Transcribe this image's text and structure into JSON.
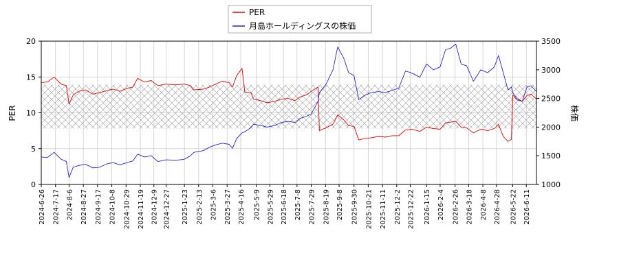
{
  "chart_data": {
    "type": "line",
    "legend": {
      "placement": "top-center",
      "entries": [
        {
          "label": "PER",
          "color": "#dd0000"
        },
        {
          "label": "月島ホールディングスの株価",
          "color": "#2222cc"
        }
      ]
    },
    "y_left": {
      "label": "PER",
      "lim": [
        0,
        20
      ],
      "ticks": [
        0,
        5,
        10,
        15,
        20
      ]
    },
    "y_right": {
      "label": "株価",
      "lim": [
        1000,
        3500
      ],
      "ticks": [
        1000,
        1500,
        2000,
        2500,
        3000,
        3500
      ]
    },
    "x": {
      "lim": [
        "2024-06-26",
        "2026-06-26"
      ],
      "tick_labels": [
        "2024-6-26",
        "2024-7-17",
        "2024-8-6",
        "2024-8-27",
        "2024-9-17",
        "2024-10-8",
        "2024-10-29",
        "2024-11-19",
        "2024-12-9",
        "2024-12-27",
        "2025-1-23",
        "2025-2-13",
        "2025-3-6",
        "2025-3-27",
        "2025-4-16",
        "2025-5-9",
        "2025-5-29",
        "2025-6-18",
        "2025-7-8",
        "2025-7-29",
        "2025-8-19",
        "2025-9-8",
        "2025-9-30",
        "2025-10-21",
        "2025-11-11",
        "2025-12-2",
        "2025-12-22",
        "2026-1-15",
        "2026-2-4",
        "2026-2-26",
        "2026-3-18",
        "2026-4-8",
        "2026-4-28",
        "2026-5-22",
        "2026-6-11"
      ]
    },
    "grid": true,
    "band": {
      "axis": "left",
      "range": [
        7.8,
        13.9
      ],
      "pattern": "crosshatch"
    },
    "series": [
      {
        "name": "PER",
        "axis": "left",
        "color": "#dd0000",
        "points": [
          [
            "2024-06-26",
            14.2
          ],
          [
            "2024-07-05",
            14.3
          ],
          [
            "2024-07-15",
            15.0
          ],
          [
            "2024-07-25",
            14.0
          ],
          [
            "2024-08-02",
            13.8
          ],
          [
            "2024-08-06",
            11.2
          ],
          [
            "2024-08-12",
            12.5
          ],
          [
            "2024-08-20",
            13.0
          ],
          [
            "2024-08-30",
            13.2
          ],
          [
            "2024-09-10",
            12.6
          ],
          [
            "2024-09-20",
            12.8
          ],
          [
            "2024-10-01",
            13.1
          ],
          [
            "2024-10-10",
            13.3
          ],
          [
            "2024-10-20",
            13.0
          ],
          [
            "2024-10-30",
            13.4
          ],
          [
            "2024-11-08",
            13.6
          ],
          [
            "2024-11-15",
            14.8
          ],
          [
            "2024-11-25",
            14.3
          ],
          [
            "2024-12-05",
            14.5
          ],
          [
            "2024-12-15",
            13.8
          ],
          [
            "2024-12-27",
            14.0
          ],
          [
            "2025-01-10",
            13.9
          ],
          [
            "2025-01-23",
            14.0
          ],
          [
            "2025-02-01",
            13.8
          ],
          [
            "2025-02-06",
            13.2
          ],
          [
            "2025-02-20",
            13.3
          ],
          [
            "2025-03-01",
            13.6
          ],
          [
            "2025-03-10",
            14.0
          ],
          [
            "2025-03-20",
            14.4
          ],
          [
            "2025-03-30",
            14.2
          ],
          [
            "2025-04-04",
            13.6
          ],
          [
            "2025-04-10",
            15.2
          ],
          [
            "2025-04-18",
            16.2
          ],
          [
            "2025-04-22",
            12.9
          ],
          [
            "2025-05-01",
            12.8
          ],
          [
            "2025-05-05",
            11.9
          ],
          [
            "2025-05-15",
            11.7
          ],
          [
            "2025-05-25",
            11.4
          ],
          [
            "2025-06-05",
            11.6
          ],
          [
            "2025-06-15",
            11.9
          ],
          [
            "2025-06-25",
            12.0
          ],
          [
            "2025-07-05",
            11.7
          ],
          [
            "2025-07-12",
            12.2
          ],
          [
            "2025-07-22",
            12.5
          ],
          [
            "2025-07-29",
            13.0
          ],
          [
            "2025-08-08",
            13.6
          ],
          [
            "2025-08-10",
            7.5
          ],
          [
            "2025-08-20",
            7.9
          ],
          [
            "2025-08-30",
            8.4
          ],
          [
            "2025-09-06",
            9.7
          ],
          [
            "2025-09-15",
            9.0
          ],
          [
            "2025-09-22",
            8.2
          ],
          [
            "2025-09-30",
            8.1
          ],
          [
            "2025-10-07",
            6.2
          ],
          [
            "2025-10-15",
            6.4
          ],
          [
            "2025-10-25",
            6.5
          ],
          [
            "2025-11-05",
            6.7
          ],
          [
            "2025-11-15",
            6.6
          ],
          [
            "2025-11-25",
            6.8
          ],
          [
            "2025-12-05",
            6.8
          ],
          [
            "2025-12-15",
            7.6
          ],
          [
            "2025-12-25",
            7.7
          ],
          [
            "2026-01-05",
            7.4
          ],
          [
            "2026-01-15",
            8.0
          ],
          [
            "2026-01-25",
            7.8
          ],
          [
            "2026-02-04",
            7.7
          ],
          [
            "2026-02-12",
            8.6
          ],
          [
            "2026-02-20",
            8.7
          ],
          [
            "2026-02-27",
            8.8
          ],
          [
            "2026-03-07",
            8.0
          ],
          [
            "2026-03-15",
            7.9
          ],
          [
            "2026-03-25",
            7.2
          ],
          [
            "2026-04-05",
            7.7
          ],
          [
            "2026-04-15",
            7.5
          ],
          [
            "2026-04-25",
            7.8
          ],
          [
            "2026-05-01",
            8.4
          ],
          [
            "2026-05-08",
            6.7
          ],
          [
            "2026-05-15",
            6.0
          ],
          [
            "2026-05-20",
            6.3
          ],
          [
            "2026-05-22",
            12.5
          ],
          [
            "2026-05-28",
            11.8
          ],
          [
            "2026-06-05",
            11.6
          ],
          [
            "2026-06-12",
            12.4
          ],
          [
            "2026-06-18",
            12.6
          ],
          [
            "2026-06-26",
            11.9
          ]
        ]
      },
      {
        "name": "月島ホールディングスの株価",
        "axis": "right",
        "color": "#2222cc",
        "points": [
          [
            "2024-06-26",
            1480
          ],
          [
            "2024-07-05",
            1470
          ],
          [
            "2024-07-15",
            1560
          ],
          [
            "2024-07-25",
            1440
          ],
          [
            "2024-08-02",
            1400
          ],
          [
            "2024-08-06",
            1120
          ],
          [
            "2024-08-12",
            1300
          ],
          [
            "2024-08-20",
            1330
          ],
          [
            "2024-08-30",
            1350
          ],
          [
            "2024-09-10",
            1290
          ],
          [
            "2024-09-20",
            1300
          ],
          [
            "2024-10-01",
            1360
          ],
          [
            "2024-10-10",
            1380
          ],
          [
            "2024-10-20",
            1340
          ],
          [
            "2024-10-30",
            1380
          ],
          [
            "2024-11-08",
            1410
          ],
          [
            "2024-11-15",
            1530
          ],
          [
            "2024-11-25",
            1480
          ],
          [
            "2024-12-05",
            1500
          ],
          [
            "2024-12-15",
            1400
          ],
          [
            "2024-12-27",
            1430
          ],
          [
            "2025-01-10",
            1420
          ],
          [
            "2025-01-23",
            1440
          ],
          [
            "2025-02-01",
            1500
          ],
          [
            "2025-02-06",
            1560
          ],
          [
            "2025-02-20",
            1590
          ],
          [
            "2025-03-01",
            1650
          ],
          [
            "2025-03-10",
            1690
          ],
          [
            "2025-03-20",
            1720
          ],
          [
            "2025-03-30",
            1700
          ],
          [
            "2025-04-04",
            1630
          ],
          [
            "2025-04-10",
            1800
          ],
          [
            "2025-04-18",
            1900
          ],
          [
            "2025-04-22",
            1920
          ],
          [
            "2025-05-01",
            1990
          ],
          [
            "2025-05-05",
            2050
          ],
          [
            "2025-05-15",
            2030
          ],
          [
            "2025-05-25",
            2000
          ],
          [
            "2025-06-05",
            2030
          ],
          [
            "2025-06-15",
            2080
          ],
          [
            "2025-06-25",
            2100
          ],
          [
            "2025-07-05",
            2080
          ],
          [
            "2025-07-12",
            2150
          ],
          [
            "2025-07-22",
            2190
          ],
          [
            "2025-07-29",
            2230
          ],
          [
            "2025-08-08",
            2450
          ],
          [
            "2025-08-10",
            2600
          ],
          [
            "2025-08-20",
            2750
          ],
          [
            "2025-08-30",
            3000
          ],
          [
            "2025-09-06",
            3400
          ],
          [
            "2025-09-15",
            3200
          ],
          [
            "2025-09-22",
            2950
          ],
          [
            "2025-09-30",
            2900
          ],
          [
            "2025-10-07",
            2480
          ],
          [
            "2025-10-15",
            2550
          ],
          [
            "2025-10-25",
            2600
          ],
          [
            "2025-11-05",
            2620
          ],
          [
            "2025-11-15",
            2600
          ],
          [
            "2025-11-25",
            2640
          ],
          [
            "2025-12-05",
            2680
          ],
          [
            "2025-12-15",
            2980
          ],
          [
            "2025-12-25",
            2940
          ],
          [
            "2026-01-05",
            2870
          ],
          [
            "2026-01-15",
            3100
          ],
          [
            "2026-01-25",
            3000
          ],
          [
            "2026-02-04",
            3050
          ],
          [
            "2026-02-12",
            3350
          ],
          [
            "2026-02-20",
            3380
          ],
          [
            "2026-02-27",
            3450
          ],
          [
            "2026-03-07",
            3100
          ],
          [
            "2026-03-15",
            3070
          ],
          [
            "2026-03-25",
            2800
          ],
          [
            "2026-04-05",
            3000
          ],
          [
            "2026-04-15",
            2950
          ],
          [
            "2026-04-25",
            3050
          ],
          [
            "2026-05-01",
            3250
          ],
          [
            "2026-05-08",
            2950
          ],
          [
            "2026-05-15",
            2650
          ],
          [
            "2026-05-20",
            2700
          ],
          [
            "2026-05-22",
            2600
          ],
          [
            "2026-05-28",
            2500
          ],
          [
            "2026-06-05",
            2450
          ],
          [
            "2026-06-12",
            2700
          ],
          [
            "2026-06-18",
            2720
          ],
          [
            "2026-06-26",
            2620
          ]
        ]
      }
    ]
  }
}
